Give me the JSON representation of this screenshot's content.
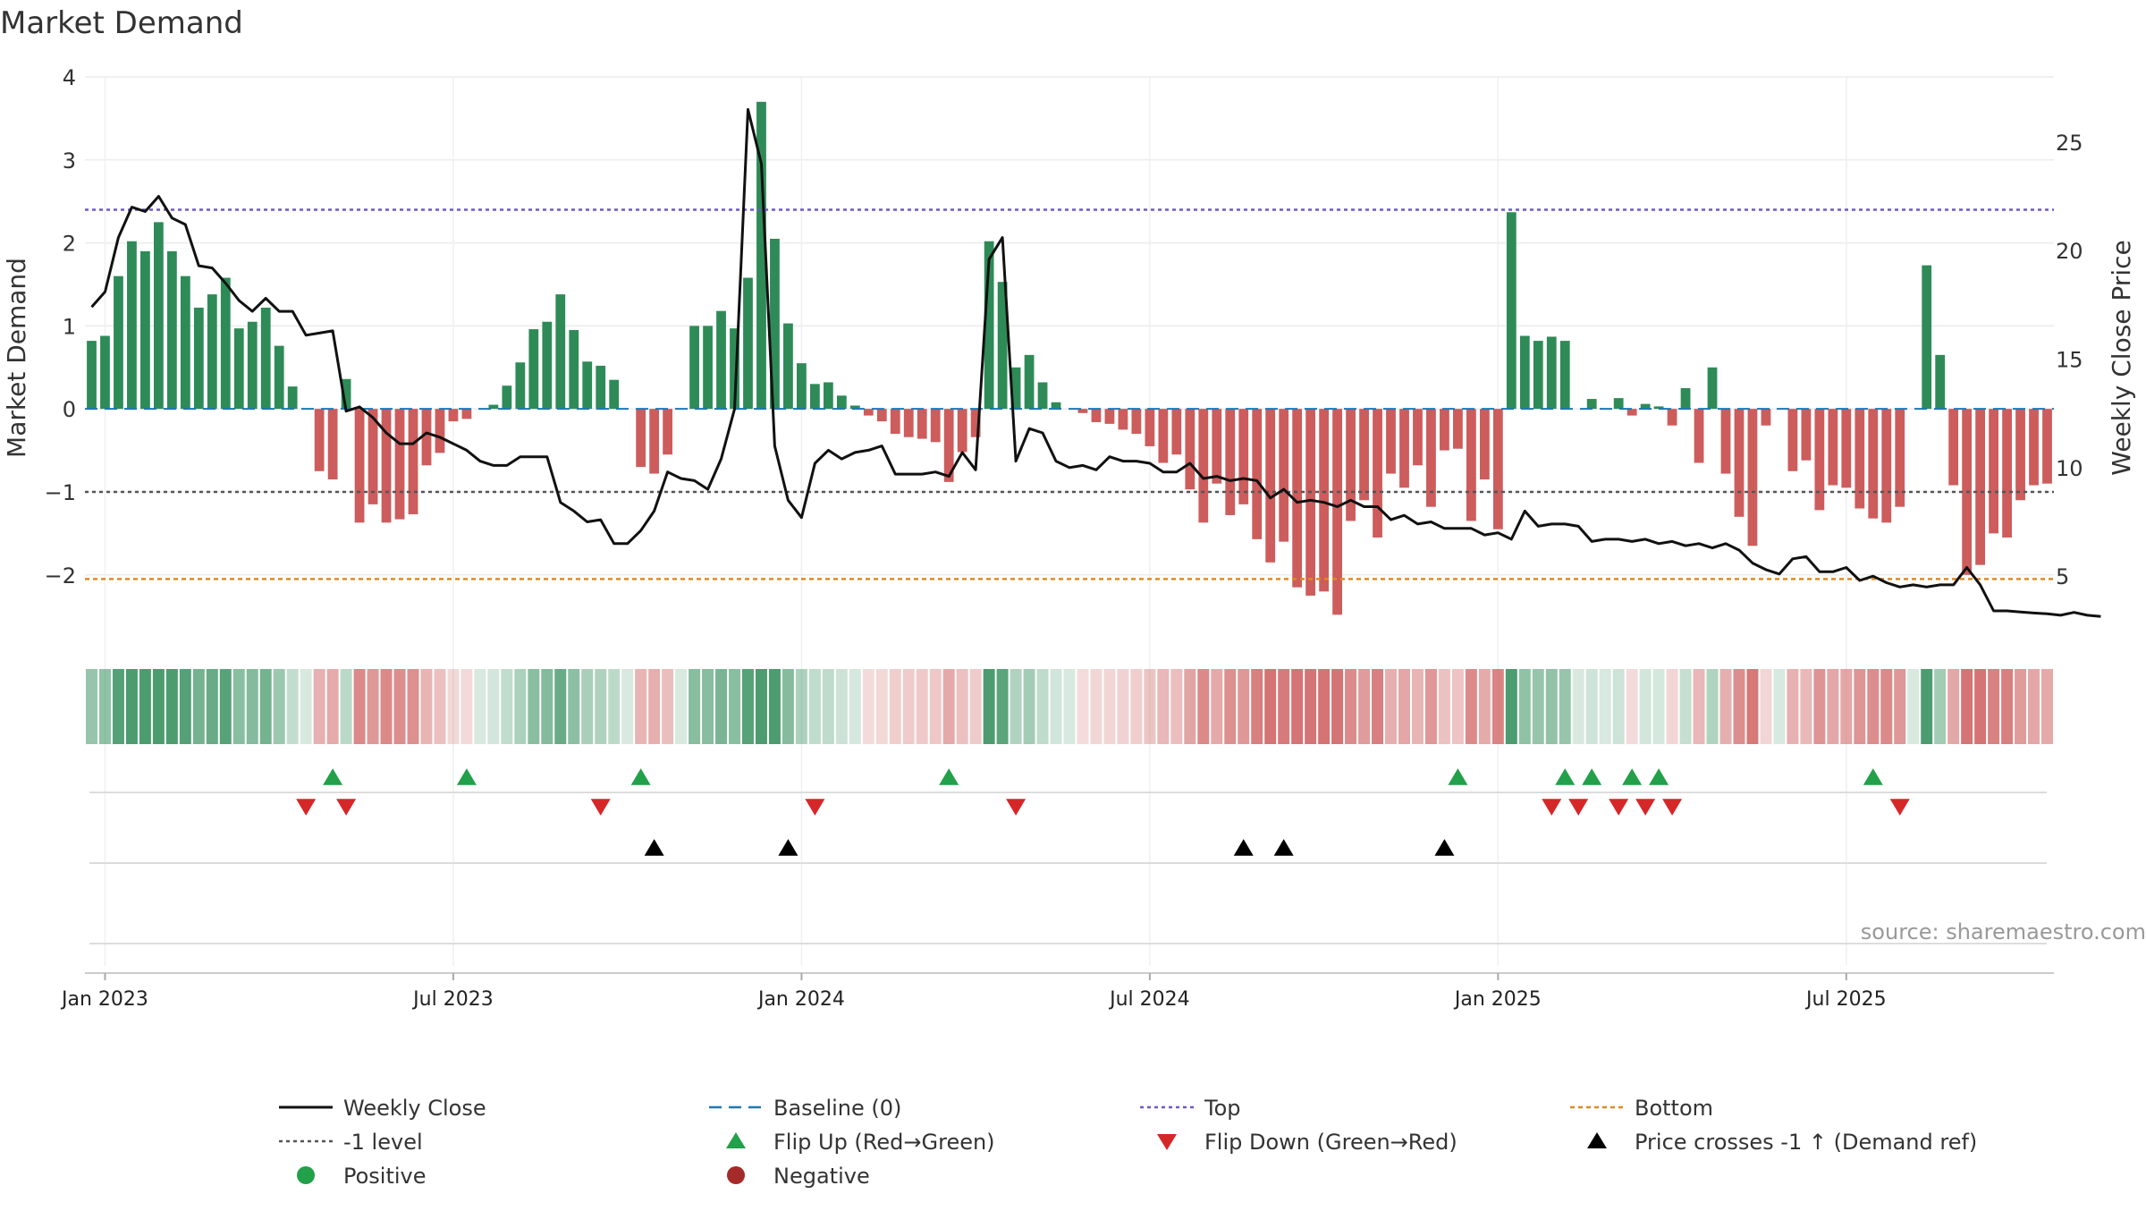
{
  "title": "Market Demand",
  "source": "source: sharemaestro.com",
  "colors": {
    "positive": "#2e8b57",
    "negative": "#cd5c5c",
    "close": "#111111",
    "baseline": "#1f77b4",
    "top": "#6a5acd",
    "bottom": "#e08a1e",
    "minus1": "#555555",
    "flip_up": "#22a04a",
    "flip_down": "#d62728",
    "cross": "#000000",
    "positive_dot": "#22a04a",
    "negative_dot": "#a52a2a"
  },
  "chart_data": {
    "type": "bar",
    "ylabel_left": "Market Demand",
    "ylabel_right": "Weekly Close Price",
    "ylim_left": [
      -2.8,
      4.0
    ],
    "ylim_right": [
      2.0,
      28.0
    ],
    "left_ticks": [
      "4",
      "3",
      "2",
      "1",
      "0",
      "−1",
      "−2"
    ],
    "left_tick_values": [
      4,
      3,
      2,
      1,
      0,
      -1,
      -2
    ],
    "right_ticks": [
      "25",
      "20",
      "15",
      "10",
      "5"
    ],
    "right_tick_values": [
      25,
      20,
      15,
      10,
      5
    ],
    "x_ticks": [
      "Jan 2023",
      "Jul 2023",
      "Jan 2024",
      "Jul 2024",
      "Jan 2025",
      "Jul 2025"
    ],
    "x_tick_weeks": [
      1.5,
      27.5,
      53.5,
      79.5,
      105.5,
      131.5
    ],
    "reference_lines": {
      "top": 2.4,
      "bottom": -2.05,
      "minus1": -1.0,
      "baseline": 0
    },
    "demand": [
      0.82,
      0.88,
      1.6,
      2.02,
      1.9,
      2.25,
      1.9,
      1.6,
      1.22,
      1.38,
      1.58,
      0.97,
      1.05,
      1.22,
      0.76,
      0.27,
      0.0,
      -0.75,
      -0.85,
      0.36,
      -1.37,
      -1.15,
      -1.37,
      -1.33,
      -1.27,
      -0.68,
      -0.53,
      -0.15,
      -0.12,
      0.0,
      0.05,
      0.28,
      0.56,
      0.96,
      1.05,
      1.38,
      0.95,
      0.57,
      0.52,
      0.35,
      0.0,
      -0.7,
      -0.78,
      -0.55,
      0.0,
      1.0,
      1.0,
      1.18,
      0.97,
      1.58,
      3.7,
      2.05,
      1.03,
      0.55,
      0.3,
      0.32,
      0.16,
      0.04,
      -0.08,
      -0.15,
      -0.3,
      -0.34,
      -0.36,
      -0.4,
      -0.88,
      -0.52,
      -0.34,
      2.02,
      1.53,
      0.5,
      0.65,
      0.32,
      0.08,
      0.0,
      -0.05,
      -0.16,
      -0.18,
      -0.25,
      -0.3,
      -0.45,
      -0.65,
      -0.55,
      -0.97,
      -1.37,
      -0.9,
      -1.28,
      -1.15,
      -1.57,
      -1.85,
      -1.6,
      -2.15,
      -2.25,
      -2.2,
      -2.48,
      -1.35,
      -1.1,
      -1.55,
      -0.78,
      -0.95,
      -0.68,
      -1.18,
      -0.5,
      -0.48,
      -1.35,
      -0.85,
      -1.45,
      2.37,
      0.88,
      0.82,
      0.87,
      0.82,
      0.0,
      0.12,
      0.0,
      0.13,
      -0.08,
      0.06,
      0.03,
      -0.2,
      0.25,
      -0.65,
      0.5,
      -0.78,
      -1.3,
      -1.65,
      -0.2,
      0.0,
      -0.75,
      -0.62,
      -1.22,
      -0.92,
      -0.95,
      -1.2,
      -1.32,
      -1.37,
      -1.18,
      0.0,
      1.73,
      0.65,
      -0.92,
      -2.0,
      -1.88,
      -1.5,
      -1.55,
      -1.1,
      -0.92,
      -0.9
    ],
    "weekly_close": [
      17.4,
      18.1,
      20.6,
      22.0,
      21.8,
      22.5,
      21.5,
      21.2,
      19.3,
      19.2,
      18.5,
      17.7,
      17.2,
      17.8,
      17.2,
      17.2,
      16.1,
      16.2,
      16.3,
      12.6,
      12.8,
      12.3,
      11.6,
      11.1,
      11.1,
      11.6,
      11.4,
      11.1,
      10.8,
      10.3,
      10.1,
      10.1,
      10.5,
      10.5,
      10.5,
      8.4,
      8.0,
      7.5,
      7.6,
      6.5,
      6.5,
      7.1,
      8.0,
      9.8,
      9.5,
      9.4,
      9.0,
      10.4,
      12.7,
      26.5,
      24.0,
      11.0,
      8.5,
      7.7,
      10.2,
      10.8,
      10.4,
      10.7,
      10.8,
      11.0,
      9.7,
      9.7,
      9.7,
      9.8,
      9.6,
      10.7,
      9.9,
      19.6,
      20.6,
      10.3,
      11.8,
      11.6,
      10.3,
      10.0,
      10.1,
      9.9,
      10.5,
      10.3,
      10.3,
      10.2,
      9.8,
      9.8,
      10.2,
      9.5,
      9.6,
      9.4,
      9.5,
      9.4,
      8.6,
      9.0,
      8.4,
      8.5,
      8.4,
      8.2,
      8.5,
      8.2,
      8.2,
      7.6,
      7.8,
      7.4,
      7.5,
      7.2,
      7.2,
      7.2,
      6.9,
      7.0,
      6.7,
      8.0,
      7.3,
      7.4,
      7.4,
      7.3,
      6.6,
      6.7,
      6.7,
      6.6,
      6.7,
      6.5,
      6.6,
      6.4,
      6.5,
      6.3,
      6.5,
      6.2,
      5.6,
      5.3,
      5.1,
      5.8,
      5.9,
      5.2,
      5.2,
      5.4,
      4.8,
      5.0,
      4.7,
      4.5,
      4.6,
      4.5,
      4.6,
      4.6,
      5.4,
      4.6,
      3.4,
      3.4,
      3.35,
      3.3,
      3.27,
      3.2,
      3.33,
      3.2,
      3.14
    ],
    "flip_up_weeks": [
      18,
      28,
      41,
      64,
      102,
      110,
      112,
      115,
      117,
      133
    ],
    "flip_down_weeks": [
      16,
      19,
      38,
      54,
      69,
      109,
      111,
      114,
      116,
      118,
      135
    ],
    "price_cross_weeks": [
      42,
      52,
      86,
      89,
      101
    ],
    "legend": [
      {
        "label": "Weekly Close",
        "kind": "line"
      },
      {
        "label": "Baseline (0)",
        "kind": "dash"
      },
      {
        "label": "Top",
        "kind": "dot-top"
      },
      {
        "label": "Bottom",
        "kind": "dot-bottom"
      },
      {
        "label": "-1 level",
        "kind": "dot-minus1"
      },
      {
        "label": "Flip Up (Red→Green)",
        "kind": "tri-up-green"
      },
      {
        "label": "Flip Down (Green→Red)",
        "kind": "tri-down-red"
      },
      {
        "label": "Price crosses -1 ↑ (Demand ref)",
        "kind": "tri-up-black"
      },
      {
        "label": "Positive",
        "kind": "dot-green"
      },
      {
        "label": "Negative",
        "kind": "dot-red"
      }
    ]
  }
}
